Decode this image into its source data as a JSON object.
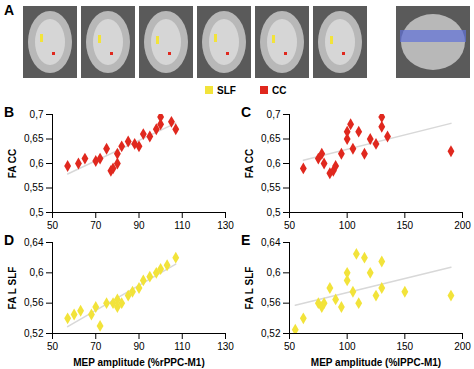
{
  "panel_a": {
    "title": "A",
    "legend": [
      {
        "name": "SLF",
        "color": "#f2e33a"
      },
      {
        "name": "CC",
        "color": "#e0281e"
      }
    ]
  },
  "chart_data": [
    {
      "type": "scatter",
      "title": "B",
      "ylabel": "FA CC",
      "color": "#e0281e",
      "marker": "diamond",
      "xlim": [
        50,
        130
      ],
      "xticks": [
        50,
        70,
        90,
        110,
        130
      ],
      "ylim": [
        0.5,
        0.7
      ],
      "yticks": [
        {
          "value": 0.5,
          "label": "0,5"
        },
        {
          "value": 0.55,
          "label": "0,55"
        },
        {
          "value": 0.6,
          "label": "0,6"
        },
        {
          "value": 0.65,
          "label": "0,65"
        },
        {
          "value": 0.7,
          "label": "0,7"
        }
      ],
      "x": [
        57,
        62,
        65,
        70,
        72,
        75,
        77,
        78,
        80,
        80,
        82,
        85,
        88,
        90,
        92,
        95,
        98,
        100,
        100,
        105,
        107
      ],
      "values": [
        0.595,
        0.6,
        0.61,
        0.605,
        0.61,
        0.63,
        0.585,
        0.59,
        0.6,
        0.62,
        0.635,
        0.645,
        0.64,
        0.635,
        0.66,
        0.655,
        0.67,
        0.68,
        0.695,
        0.685,
        0.67
      ]
    },
    {
      "type": "scatter",
      "title": "C",
      "ylabel": "FA CC",
      "color": "#e0281e",
      "marker": "diamond",
      "xlim": [
        50,
        200
      ],
      "xticks": [
        50,
        100,
        150,
        200
      ],
      "ylim": [
        0.5,
        0.7
      ],
      "yticks": [
        {
          "value": 0.5,
          "label": "0,5"
        },
        {
          "value": 0.55,
          "label": "0,55"
        },
        {
          "value": 0.6,
          "label": "0,6"
        },
        {
          "value": 0.65,
          "label": "0,65"
        },
        {
          "value": 0.7,
          "label": "0,7"
        }
      ],
      "x": [
        62,
        75,
        78,
        80,
        85,
        88,
        90,
        95,
        100,
        100,
        103,
        105,
        110,
        115,
        120,
        125,
        130,
        130,
        135,
        190
      ],
      "values": [
        0.59,
        0.61,
        0.62,
        0.6,
        0.58,
        0.585,
        0.595,
        0.62,
        0.65,
        0.665,
        0.68,
        0.63,
        0.665,
        0.62,
        0.65,
        0.64,
        0.675,
        0.695,
        0.655,
        0.625
      ]
    },
    {
      "type": "scatter",
      "title": "D",
      "ylabel": "FA L SLF",
      "xlabel": "MEP amplitude (%rPPC-M1)",
      "color": "#f2e33a",
      "marker": "diamond",
      "xlim": [
        50,
        130
      ],
      "xticks": [
        50,
        70,
        90,
        110,
        130
      ],
      "ylim": [
        0.52,
        0.64
      ],
      "yticks": [
        {
          "value": 0.52,
          "label": "0,52"
        },
        {
          "value": 0.56,
          "label": "0,56"
        },
        {
          "value": 0.6,
          "label": "0,6"
        },
        {
          "value": 0.64,
          "label": "0,64"
        }
      ],
      "x": [
        57,
        60,
        63,
        68,
        70,
        72,
        75,
        78,
        80,
        80,
        82,
        85,
        87,
        90,
        92,
        95,
        98,
        100,
        103,
        107
      ],
      "values": [
        0.54,
        0.545,
        0.55,
        0.545,
        0.555,
        0.53,
        0.56,
        0.56,
        0.555,
        0.565,
        0.56,
        0.57,
        0.575,
        0.58,
        0.59,
        0.595,
        0.6,
        0.605,
        0.61,
        0.62
      ]
    },
    {
      "type": "scatter",
      "title": "E",
      "ylabel": "FA L SLF",
      "xlabel": "MEP amplitude (%lPPC-M1)",
      "color": "#f2e33a",
      "marker": "diamond",
      "xlim": [
        50,
        200
      ],
      "xticks": [
        50,
        100,
        150,
        200
      ],
      "ylim": [
        0.52,
        0.64
      ],
      "yticks": [
        {
          "value": 0.52,
          "label": "0,52"
        },
        {
          "value": 0.56,
          "label": "0,56"
        },
        {
          "value": 0.6,
          "label": "0,6"
        },
        {
          "value": 0.64,
          "label": "0,64"
        }
      ],
      "x": [
        55,
        62,
        75,
        78,
        80,
        85,
        90,
        95,
        100,
        100,
        105,
        108,
        110,
        115,
        120,
        125,
        130,
        130,
        150,
        190
      ],
      "values": [
        0.525,
        0.54,
        0.56,
        0.555,
        0.56,
        0.58,
        0.565,
        0.555,
        0.59,
        0.6,
        0.575,
        0.625,
        0.56,
        0.62,
        0.6,
        0.57,
        0.615,
        0.58,
        0.575,
        0.57
      ]
    }
  ]
}
